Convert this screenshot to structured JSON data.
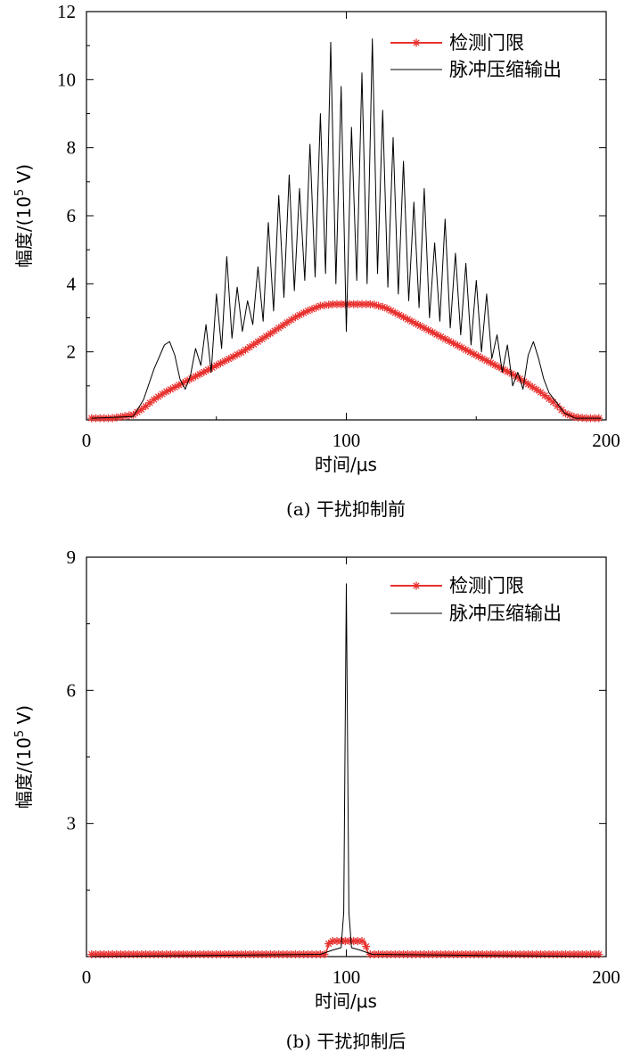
{
  "chart_data": [
    {
      "type": "line",
      "caption": "(a) 干扰抑制前",
      "xlabel": "时间/μs",
      "ylabel_main": "幅度/(10",
      "ylabel_exp": "5",
      "ylabel_tail": " V)",
      "xlim": [
        0,
        200
      ],
      "ylim": [
        0,
        12
      ],
      "xticks": [
        0,
        100,
        200
      ],
      "yticks": [
        2,
        4,
        6,
        8,
        10,
        12
      ],
      "grid": false,
      "legend_position": "top-right",
      "series": [
        {
          "name": "检测门限",
          "color": "#e8312f",
          "marker": "asterisk",
          "x": [
            2,
            10,
            18,
            22,
            26,
            30,
            35,
            40,
            45,
            50,
            55,
            60,
            65,
            70,
            75,
            80,
            85,
            90,
            95,
            100,
            105,
            110,
            115,
            120,
            125,
            130,
            135,
            140,
            145,
            150,
            155,
            160,
            165,
            170,
            175,
            180,
            184,
            188,
            192,
            198
          ],
          "y": [
            0.05,
            0.05,
            0.15,
            0.35,
            0.6,
            0.8,
            1.0,
            1.2,
            1.4,
            1.6,
            1.8,
            2.0,
            2.25,
            2.5,
            2.75,
            3.0,
            3.2,
            3.35,
            3.4,
            3.4,
            3.4,
            3.4,
            3.3,
            3.1,
            2.9,
            2.7,
            2.5,
            2.3,
            2.1,
            1.9,
            1.7,
            1.5,
            1.3,
            1.05,
            0.8,
            0.5,
            0.2,
            0.08,
            0.05,
            0.05
          ]
        },
        {
          "name": "脉冲压缩输出",
          "color": "#000000",
          "marker": "none",
          "x": [
            2,
            18,
            22,
            26,
            30,
            32,
            34,
            36,
            38,
            40,
            42,
            44,
            46,
            48,
            50,
            52,
            54,
            56,
            58,
            60,
            62,
            64,
            66,
            68,
            70,
            72,
            74,
            76,
            78,
            80,
            82,
            84,
            86,
            88,
            90,
            92,
            94,
            96,
            98,
            100,
            102,
            104,
            106,
            108,
            110,
            112,
            114,
            116,
            118,
            120,
            122,
            124,
            126,
            128,
            130,
            132,
            134,
            136,
            138,
            140,
            142,
            144,
            146,
            148,
            150,
            152,
            154,
            156,
            158,
            160,
            162,
            164,
            166,
            168,
            170,
            172,
            174,
            176,
            178,
            180,
            182,
            184,
            188,
            198
          ],
          "y": [
            0.05,
            0.1,
            0.6,
            1.5,
            2.2,
            2.3,
            1.9,
            1.2,
            0.9,
            1.3,
            2.1,
            1.6,
            2.8,
            1.4,
            3.7,
            2.1,
            4.8,
            2.4,
            3.9,
            2.6,
            3.5,
            2.8,
            4.5,
            2.9,
            5.8,
            3.2,
            6.6,
            3.6,
            7.2,
            3.8,
            6.8,
            4.1,
            8.1,
            4.2,
            9.0,
            4.3,
            11.1,
            4.0,
            9.8,
            2.6,
            8.6,
            4.1,
            10.2,
            4.0,
            11.2,
            4.3,
            9.1,
            3.9,
            8.3,
            3.7,
            7.6,
            3.5,
            6.4,
            3.3,
            6.8,
            3.0,
            5.2,
            2.9,
            5.9,
            2.7,
            4.9,
            2.5,
            4.6,
            2.2,
            4.1,
            2.0,
            3.7,
            1.8,
            2.5,
            1.4,
            2.2,
            1.0,
            1.4,
            0.9,
            1.9,
            2.3,
            1.8,
            1.2,
            0.8,
            0.6,
            0.4,
            0.2,
            0.05,
            0.05
          ]
        }
      ]
    },
    {
      "type": "line",
      "caption": "(b) 干扰抑制后",
      "xlabel": "时间/μs",
      "ylabel_main": "幅度/(10",
      "ylabel_exp": "5",
      "ylabel_tail": " V)",
      "xlim": [
        0,
        200
      ],
      "ylim": [
        0,
        9
      ],
      "xticks": [
        0,
        100,
        200
      ],
      "yticks": [
        3,
        6,
        9
      ],
      "grid": false,
      "legend_position": "top-right",
      "series": [
        {
          "name": "检测门限",
          "color": "#e8312f",
          "marker": "asterisk",
          "x": [
            2,
            10,
            20,
            30,
            40,
            50,
            60,
            70,
            80,
            90,
            92,
            93.5,
            95,
            98,
            101,
            104,
            107,
            108.5,
            110,
            120,
            130,
            140,
            150,
            160,
            170,
            180,
            190,
            198
          ],
          "y": [
            0.05,
            0.05,
            0.05,
            0.05,
            0.05,
            0.05,
            0.05,
            0.05,
            0.05,
            0.05,
            0.05,
            0.35,
            0.35,
            0.35,
            0.35,
            0.35,
            0.35,
            0.05,
            0.05,
            0.05,
            0.05,
            0.05,
            0.05,
            0.05,
            0.05,
            0.05,
            0.05,
            0.05
          ]
        },
        {
          "name": "脉冲压缩输出",
          "color": "#000000",
          "marker": "none",
          "x": [
            2,
            90,
            95,
            98,
            99,
            100,
            101,
            102,
            105,
            110,
            198
          ],
          "y": [
            0.0,
            0.05,
            0.15,
            0.2,
            1.0,
            8.4,
            1.0,
            0.2,
            0.15,
            0.05,
            0.0
          ]
        }
      ]
    }
  ]
}
